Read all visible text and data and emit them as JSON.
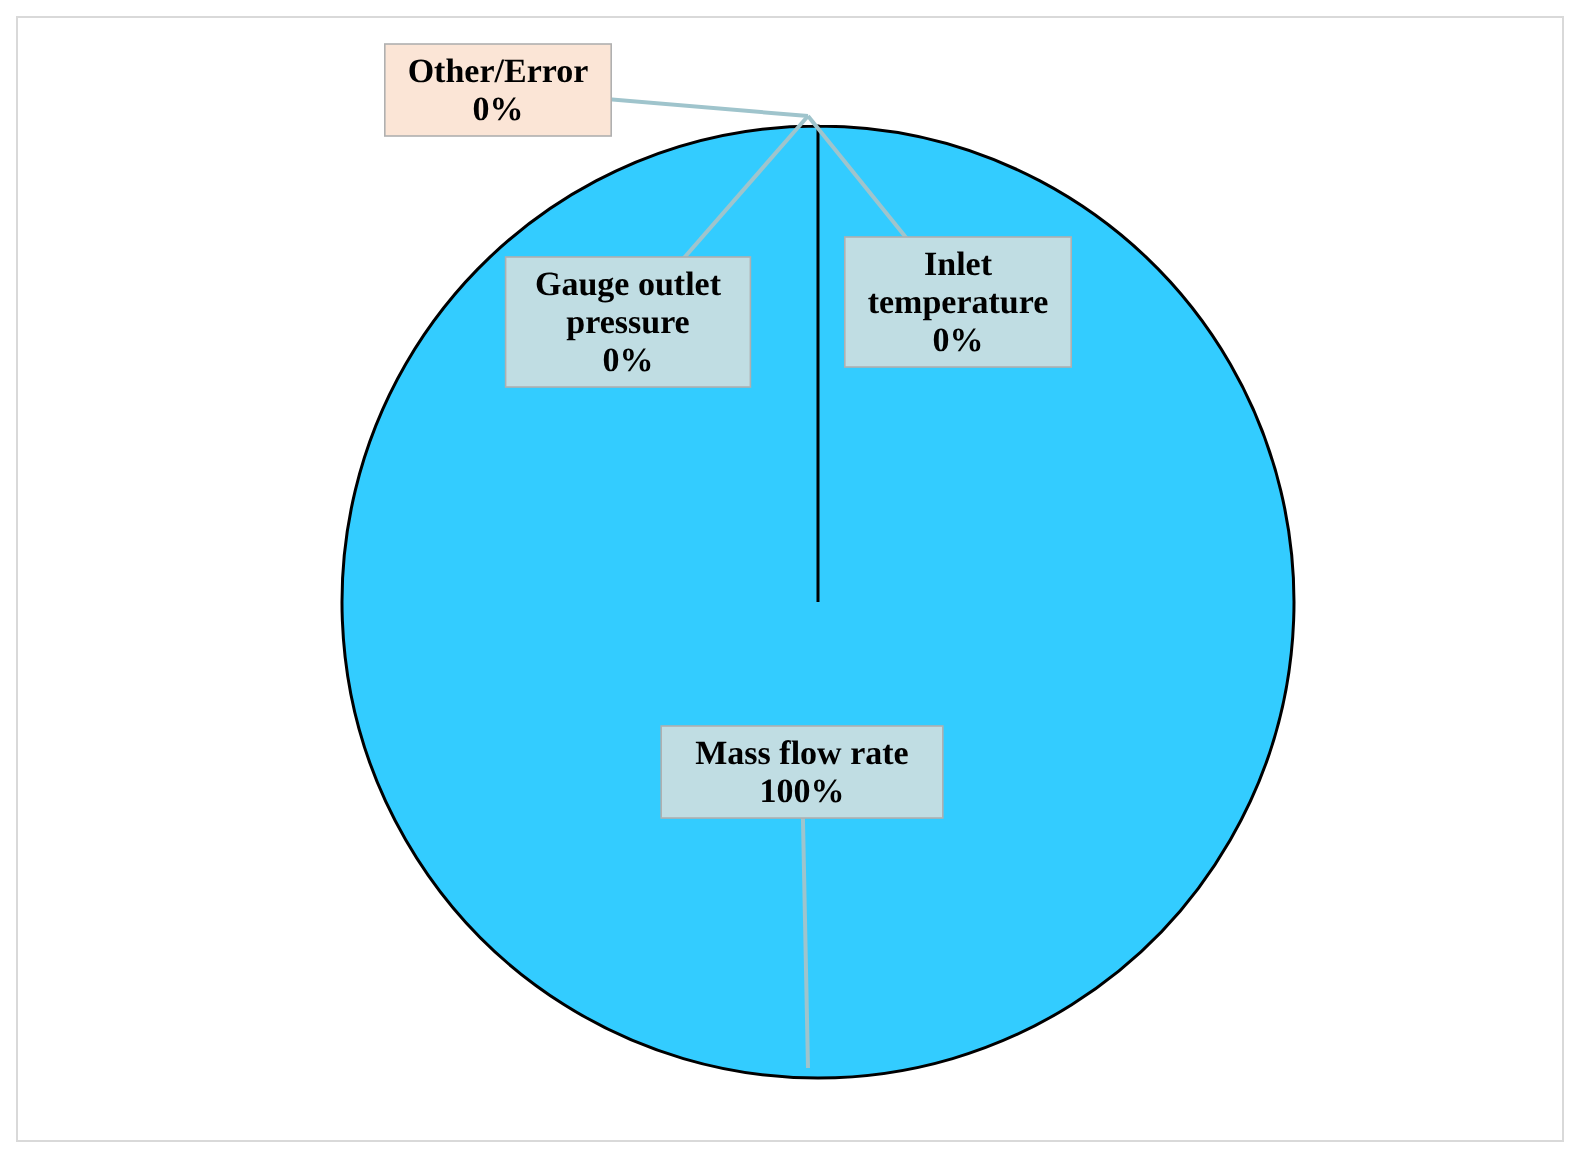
{
  "chart_data": {
    "type": "pie",
    "categories": [
      "Mass flow rate",
      "Gauge outlet pressure",
      "Inlet temperature",
      "Other/Error"
    ],
    "values": [
      100,
      0,
      0,
      0
    ],
    "colors": [
      "#33ccff",
      "#33ccff",
      "#33ccff",
      "#33ccff"
    ],
    "value_labels": [
      "100%",
      "0%",
      "0%",
      "0%"
    ],
    "legend": false
  }
}
